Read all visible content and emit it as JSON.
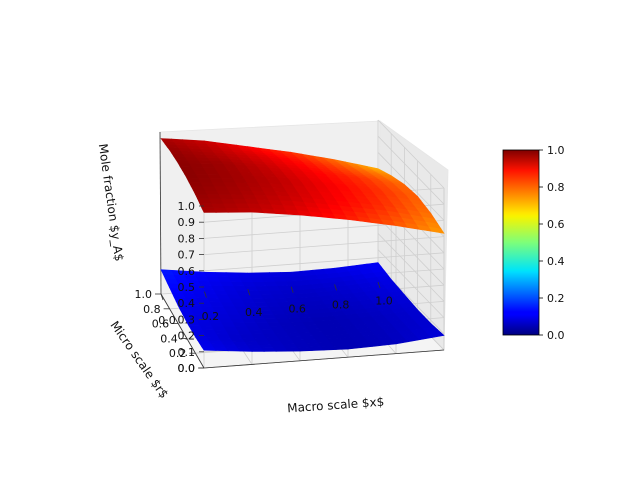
{
  "chart_data": {
    "type": "surface",
    "title": "",
    "xlabel": "Macro scale $x$",
    "ylabel": "Micro scale $r$",
    "zlabel": "Mole fraction $y_A$",
    "xlim": [
      0.0,
      1.0
    ],
    "ylim": [
      0.0,
      1.0
    ],
    "zlim": [
      0.0,
      1.0
    ],
    "x_ticks": [
      "0.0",
      "0.2",
      "0.4",
      "0.6",
      "0.8",
      "1.0"
    ],
    "y_ticks": [
      "0.0",
      "0.2",
      "0.4",
      "0.6",
      "0.8",
      "1.0"
    ],
    "z_ticks": [
      "0.0",
      "0.1",
      "0.2",
      "0.3",
      "0.4",
      "0.5",
      "0.6",
      "0.7",
      "0.8",
      "0.9",
      "1.0"
    ],
    "colormap": "jet",
    "colorbar_ticks": [
      "0.0",
      "0.2",
      "0.4",
      "0.6",
      "0.8",
      "1.0"
    ],
    "colorbar_range": [
      0.0,
      1.0
    ],
    "grid": true,
    "surfaces": [
      {
        "x": [
          0.0,
          0.2,
          0.4,
          0.6,
          0.8,
          1.0
        ],
        "y": [
          0.0,
          0.2,
          0.4,
          0.6,
          0.8,
          1.0
        ],
        "z": [
          [
            0.15,
            0.12,
            0.1,
            0.09,
            0.1,
            0.12
          ],
          [
            0.13,
            0.1,
            0.08,
            0.07,
            0.08,
            0.1
          ],
          [
            0.11,
            0.09,
            0.07,
            0.06,
            0.07,
            0.09
          ],
          [
            0.1,
            0.08,
            0.06,
            0.05,
            0.06,
            0.08
          ],
          [
            0.1,
            0.07,
            0.06,
            0.05,
            0.06,
            0.08
          ],
          [
            0.11,
            0.08,
            0.06,
            0.05,
            0.06,
            0.09
          ]
        ]
      },
      {
        "x": [
          0.0,
          0.2,
          0.4,
          0.6,
          0.8,
          1.0
        ],
        "y": [
          0.0,
          0.2,
          0.4,
          0.6,
          0.8,
          1.0
        ],
        "z": [
          [
            0.96,
            0.93,
            0.88,
            0.83,
            0.77,
            0.7
          ],
          [
            0.98,
            0.95,
            0.91,
            0.86,
            0.8,
            0.74
          ],
          [
            0.99,
            0.97,
            0.93,
            0.88,
            0.83,
            0.77
          ],
          [
            0.99,
            0.97,
            0.94,
            0.89,
            0.84,
            0.78
          ],
          [
            0.98,
            0.96,
            0.93,
            0.88,
            0.83,
            0.76
          ],
          [
            0.96,
            0.94,
            0.9,
            0.85,
            0.79,
            0.72
          ]
        ]
      }
    ]
  }
}
